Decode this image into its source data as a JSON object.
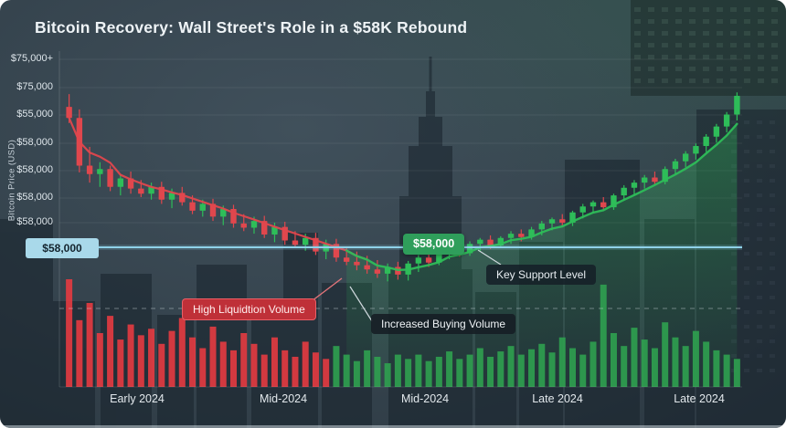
{
  "colors": {
    "background_top": "#3a4a55",
    "background_bottom": "#232f38",
    "bull_green": "#2ebd59",
    "bear_red": "#e0474d",
    "volume_red": "#e23b41",
    "volume_green": "#2f9e4f",
    "trend_red": "#e0474d",
    "trend_green": "#2ebd59",
    "support_blue": "#8fd2e9",
    "badge_blue_bg": "#a9d9ea",
    "badge_green_bg": "#2f9e5b",
    "badge_red_bg": "#bf3038",
    "badge_dark_bg": "#1c2930",
    "grid_line": "rgba(255,255,255,0.07)"
  },
  "chart_data": {
    "type": "candlestick",
    "title": "Bitcoin Recovery: Wall Street's Role in a $58K Rebound",
    "y_axis_label": "Bitcoin Price (USD)",
    "y_tick_labels": [
      "$75,000+",
      "$75,000",
      "$55,000",
      "$58,000",
      "$58,000",
      "$58,000",
      "$58,000"
    ],
    "y_axis_support_badge": "$58,000",
    "x_tick_labels": [
      "Early 2024",
      "Mid-2024",
      "Mid-2024",
      "Late 2024",
      "Late 2024"
    ],
    "support_level": 58000,
    "support_badge_label": "$58,000",
    "annotations": {
      "key_support": "Key Support Level",
      "high_liquidation": "High Liquidtion Volume",
      "increased_buying": "Increased Buying Volume"
    },
    "grid": true,
    "legend_position": "none",
    "candles": [
      [
        74500,
        76000,
        72600,
        73200
      ],
      [
        73200,
        74200,
        66800,
        67600
      ],
      [
        67600,
        69800,
        65600,
        66600
      ],
      [
        66600,
        68000,
        65100,
        67200
      ],
      [
        67200,
        67600,
        64600,
        65100
      ],
      [
        65100,
        66600,
        64100,
        66100
      ],
      [
        66100,
        66900,
        64300,
        64900
      ],
      [
        64900,
        65900,
        63900,
        64300
      ],
      [
        64300,
        65600,
        63600,
        65100
      ],
      [
        65100,
        65700,
        63100,
        63600
      ],
      [
        63600,
        64900,
        62600,
        64400
      ],
      [
        64400,
        65100,
        62900,
        63300
      ],
      [
        63300,
        64100,
        61900,
        62300
      ],
      [
        62300,
        63600,
        61600,
        63100
      ],
      [
        63100,
        63700,
        61100,
        61600
      ],
      [
        61600,
        62900,
        60600,
        62500
      ],
      [
        62500,
        63000,
        60300,
        60800
      ],
      [
        60800,
        61900,
        59900,
        60300
      ],
      [
        60300,
        61600,
        59600,
        61100
      ],
      [
        61100,
        61700,
        59100,
        59500
      ],
      [
        59500,
        60900,
        58600,
        60400
      ],
      [
        60400,
        61000,
        58300,
        58800
      ],
      [
        58800,
        59900,
        57900,
        58300
      ],
      [
        58300,
        59600,
        57600,
        59100
      ],
      [
        59100,
        59700,
        57100,
        57500
      ],
      [
        57500,
        58900,
        56600,
        58400
      ],
      [
        58400,
        59000,
        56300,
        56800
      ],
      [
        56800,
        57900,
        55900,
        56300
      ],
      [
        56300,
        57500,
        55300,
        55900
      ],
      [
        55900,
        57000,
        54900,
        55400
      ],
      [
        55400,
        56500,
        54400,
        54900
      ],
      [
        54900,
        56100,
        54000,
        55700
      ],
      [
        55700,
        56300,
        54200,
        54800
      ],
      [
        54800,
        56400,
        54100,
        56100
      ],
      [
        56100,
        57100,
        55100,
        56800
      ],
      [
        56800,
        57500,
        55700,
        56200
      ],
      [
        56200,
        57700,
        55900,
        57400
      ],
      [
        57400,
        58300,
        56600,
        58000
      ],
      [
        58000,
        58600,
        56900,
        57300
      ],
      [
        57300,
        58700,
        57000,
        58400
      ],
      [
        58400,
        59100,
        57500,
        58900
      ],
      [
        58900,
        59400,
        57800,
        58200
      ],
      [
        58200,
        59300,
        57900,
        59100
      ],
      [
        59100,
        59900,
        58400,
        59600
      ],
      [
        59600,
        60100,
        58700,
        59200
      ],
      [
        59200,
        60400,
        58900,
        60100
      ],
      [
        60100,
        61100,
        59400,
        60800
      ],
      [
        60800,
        61500,
        60000,
        61300
      ],
      [
        61300,
        61900,
        60400,
        60900
      ],
      [
        60900,
        62300,
        60500,
        62100
      ],
      [
        62100,
        63100,
        61400,
        62800
      ],
      [
        62800,
        63500,
        62000,
        63300
      ],
      [
        63300,
        63900,
        62300,
        62700
      ],
      [
        62700,
        64300,
        62400,
        64100
      ],
      [
        64100,
        65300,
        63500,
        65000
      ],
      [
        65000,
        65900,
        64200,
        65600
      ],
      [
        65600,
        66500,
        64900,
        66200
      ],
      [
        66200,
        66900,
        65300,
        65700
      ],
      [
        65700,
        67500,
        65400,
        67200
      ],
      [
        67200,
        68400,
        66600,
        68100
      ],
      [
        68100,
        69300,
        67400,
        69000
      ],
      [
        69000,
        70200,
        68300,
        69900
      ],
      [
        69900,
        71300,
        69200,
        71000
      ],
      [
        71000,
        72500,
        70300,
        72200
      ],
      [
        72200,
        73900,
        71500,
        73600
      ],
      [
        73600,
        76200,
        72900,
        75800
      ]
    ],
    "volumes": [
      1.0,
      0.62,
      0.78,
      0.5,
      0.66,
      0.44,
      0.58,
      0.48,
      0.54,
      0.4,
      0.52,
      0.64,
      0.46,
      0.36,
      0.56,
      0.42,
      0.34,
      0.5,
      0.4,
      0.3,
      0.46,
      0.34,
      0.28,
      0.42,
      0.32,
      0.26,
      0.38,
      0.3,
      0.24,
      0.34,
      0.28,
      0.22,
      0.3,
      0.26,
      0.3,
      0.24,
      0.28,
      0.33,
      0.26,
      0.3,
      0.36,
      0.28,
      0.33,
      0.38,
      0.3,
      0.35,
      0.4,
      0.32,
      0.46,
      0.36,
      0.3,
      0.42,
      0.95,
      0.5,
      0.38,
      0.55,
      0.44,
      0.36,
      0.6,
      0.46,
      0.38,
      0.52,
      0.42,
      0.34,
      0.3,
      0.26
    ],
    "volume_color_split_index": 26,
    "bearish_trend_end_index": 29,
    "bullish_trend_start_index": 27
  }
}
